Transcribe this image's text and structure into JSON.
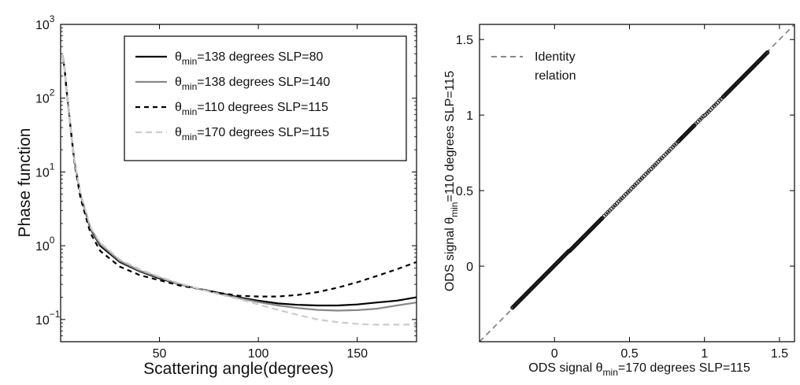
{
  "chart_data": [
    {
      "type": "line",
      "xlabel": "Scattering angle(degrees)",
      "ylabel": "Phase function",
      "xlim": [
        0,
        180
      ],
      "ylim": [
        0.05,
        1000
      ],
      "yscale": "log",
      "xticks": [
        {
          "value": 50,
          "label": "50"
        },
        {
          "value": 100,
          "label": "100"
        },
        {
          "value": 150,
          "label": "150"
        }
      ],
      "yticks": [
        {
          "value": 0.1,
          "base": "10",
          "exp": "−1"
        },
        {
          "value": 1,
          "base": "10",
          "exp": "0"
        },
        {
          "value": 10,
          "base": "10",
          "exp": "1"
        },
        {
          "value": 100,
          "base": "10",
          "exp": "2"
        },
        {
          "value": 1000,
          "base": "10",
          "exp": "3"
        }
      ],
      "legend_position": "top-right",
      "series": [
        {
          "legend": {
            "theta": "θ",
            "sub": "min",
            "rest": "=138 degrees SLP=80"
          },
          "color": "#000000",
          "dash": "",
          "x": [
            1,
            2,
            3,
            5,
            7,
            10,
            15,
            20,
            30,
            40,
            50,
            60,
            70,
            80,
            90,
            100,
            110,
            120,
            130,
            140,
            150,
            160,
            170,
            180
          ],
          "y": [
            380,
            250,
            130,
            40,
            14,
            5,
            1.7,
            1.0,
            0.6,
            0.45,
            0.36,
            0.3,
            0.26,
            0.23,
            0.2,
            0.18,
            0.165,
            0.158,
            0.155,
            0.155,
            0.16,
            0.17,
            0.18,
            0.2
          ]
        },
        {
          "legend": {
            "theta": "θ",
            "sub": "min",
            "rest": "=138 degrees SLP=140"
          },
          "color": "#888888",
          "dash": "",
          "x": [
            1,
            2,
            3,
            5,
            7,
            10,
            15,
            20,
            30,
            40,
            50,
            60,
            70,
            80,
            90,
            100,
            110,
            120,
            130,
            140,
            150,
            160,
            170,
            180
          ],
          "y": [
            380,
            250,
            130,
            40,
            14,
            5,
            1.75,
            1.05,
            0.62,
            0.46,
            0.37,
            0.3,
            0.26,
            0.225,
            0.195,
            0.172,
            0.155,
            0.143,
            0.135,
            0.132,
            0.134,
            0.14,
            0.155,
            0.17
          ]
        },
        {
          "legend": {
            "theta": "θ",
            "sub": "min",
            "rest": "=110 degrees SLP=115"
          },
          "color": "#000000",
          "dash": "6,5",
          "x": [
            1,
            2,
            3,
            5,
            7,
            10,
            15,
            20,
            30,
            40,
            50,
            60,
            70,
            80,
            90,
            100,
            110,
            120,
            130,
            140,
            150,
            160,
            170,
            180
          ],
          "y": [
            380,
            250,
            130,
            40,
            13,
            4.5,
            1.5,
            0.85,
            0.52,
            0.4,
            0.34,
            0.29,
            0.26,
            0.23,
            0.21,
            0.205,
            0.205,
            0.215,
            0.235,
            0.27,
            0.32,
            0.39,
            0.48,
            0.6
          ]
        },
        {
          "legend": {
            "theta": "θ",
            "sub": "min",
            "rest": "=170 degrees SLP=115"
          },
          "color": "#cccccc",
          "dash": "8,5",
          "x": [
            1,
            2,
            3,
            5,
            7,
            10,
            15,
            20,
            30,
            40,
            50,
            60,
            70,
            80,
            90,
            100,
            110,
            120,
            130,
            140,
            150,
            160,
            170,
            180
          ],
          "y": [
            380,
            250,
            130,
            40,
            14,
            5.2,
            1.8,
            1.1,
            0.65,
            0.48,
            0.38,
            0.31,
            0.26,
            0.22,
            0.19,
            0.16,
            0.135,
            0.115,
            0.1,
            0.092,
            0.087,
            0.085,
            0.085,
            0.085
          ]
        }
      ]
    },
    {
      "type": "scatter",
      "xlabel": {
        "pre": "ODS signal ",
        "theta": "θ",
        "sub": "min",
        "post": "=170 degrees SLP=115"
      },
      "ylabel": {
        "pre": "ODS signal ",
        "theta": "θ",
        "sub": "min",
        "post": "=110 degrees SLP=115"
      },
      "xlim": [
        -0.5,
        1.6
      ],
      "ylim": [
        -0.5,
        1.6
      ],
      "xticks": [
        "0",
        "0.5",
        "1",
        "1.5"
      ],
      "yticks": [
        "0",
        "0.5",
        "1",
        "1.5"
      ],
      "tick_values": [
        0,
        0.5,
        1,
        1.5
      ],
      "legend_position": "top-left",
      "identity": {
        "legend": [
          "Identity",
          "relation"
        ],
        "color": "#888888",
        "dash": "7,5",
        "from": -0.5,
        "to": 1.6
      },
      "points": {
        "x_range": [
          -0.28,
          1.42
        ],
        "relation": "y ≈ x",
        "color": "#111111",
        "dense_segments": [
          [
            -0.28,
            0.32
          ],
          [
            0.82,
            0.93
          ],
          [
            1.12,
            1.42
          ]
        ]
      }
    }
  ]
}
